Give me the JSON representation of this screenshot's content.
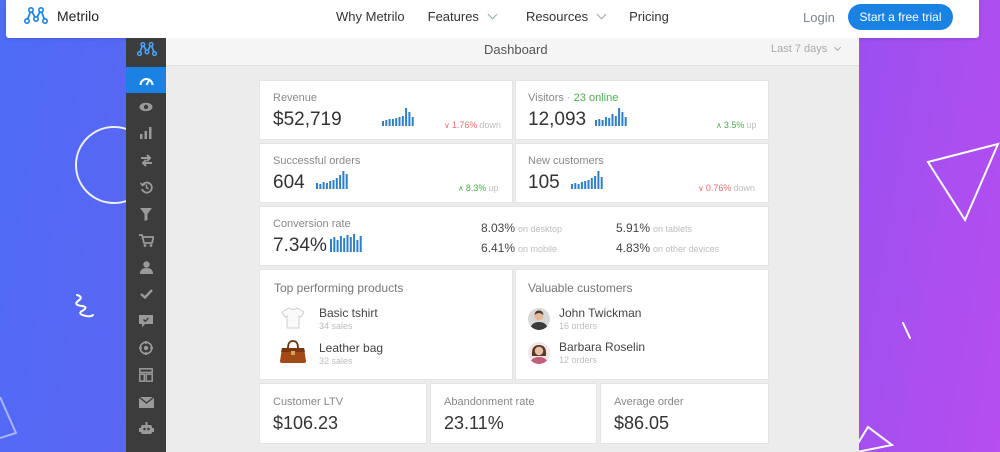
{
  "brand": {
    "name": "Metrilo",
    "color": "#1a82e2"
  },
  "nav": {
    "items": [
      {
        "label": "Why Metrilo",
        "has_dropdown": false
      },
      {
        "label": "Features",
        "has_dropdown": true
      },
      {
        "label": "Resources",
        "has_dropdown": true
      },
      {
        "label": "Pricing",
        "has_dropdown": false
      }
    ],
    "login_label": "Login",
    "cta_label": "Start a free trial"
  },
  "dashboard": {
    "title": "Dashboard",
    "date_range": "Last 7 days",
    "sidebar_icons": [
      "metrilo-logo-icon",
      "dashboard-gauge-icon",
      "eye-icon",
      "bar-chart-icon",
      "transfer-arrows-icon",
      "history-icon",
      "funnel-icon",
      "cart-icon",
      "user-icon",
      "checkmark-icon",
      "chat-icon",
      "target-icon",
      "layout-icon",
      "mail-icon",
      "robot-icon"
    ],
    "revenue": {
      "label": "Revenue",
      "value": "$52,719",
      "change": "1.76%",
      "direction_word": "down",
      "trend": "down"
    },
    "visitors": {
      "label": "Visitors",
      "separator": " · ",
      "online": "23 online",
      "value": "12,093",
      "change": "3.5%",
      "direction_word": "up",
      "trend": "up"
    },
    "orders": {
      "label": "Successful orders",
      "value": "604",
      "change": "8.3%",
      "direction_word": "up",
      "trend": "up"
    },
    "new_customers": {
      "label": "New customers",
      "value": "105",
      "change": "0.76%",
      "direction_word": "down",
      "trend": "down"
    },
    "conversion": {
      "label": "Conversion rate",
      "value": "7.34%",
      "breakdown": [
        {
          "value": "8.03%",
          "label": "on desktop"
        },
        {
          "value": "6.41%",
          "label": "on mobile"
        },
        {
          "value": "5.91%",
          "label": "on tablets"
        },
        {
          "value": "4.83%",
          "label": "on other devices"
        }
      ]
    },
    "top_products": {
      "title": "Top performing products",
      "items": [
        {
          "name": "Basic tshirt",
          "sales": "34 sales",
          "icon": "tshirt-icon"
        },
        {
          "name": "Leather bag",
          "sales": "32 sales",
          "icon": "leather-bag-icon"
        }
      ]
    },
    "valuable_customers": {
      "title": "Valuable customers",
      "items": [
        {
          "name": "John Twickman",
          "orders": "16 orders"
        },
        {
          "name": "Barbara Roselin",
          "orders": "12 orders"
        }
      ]
    },
    "ltv": {
      "label": "Customer LTV",
      "value": "$106.23"
    },
    "abandonment": {
      "label": "Abandonment rate",
      "value": "23.11%"
    },
    "avg_order": {
      "label": "Average order",
      "value": "$86.05"
    }
  }
}
